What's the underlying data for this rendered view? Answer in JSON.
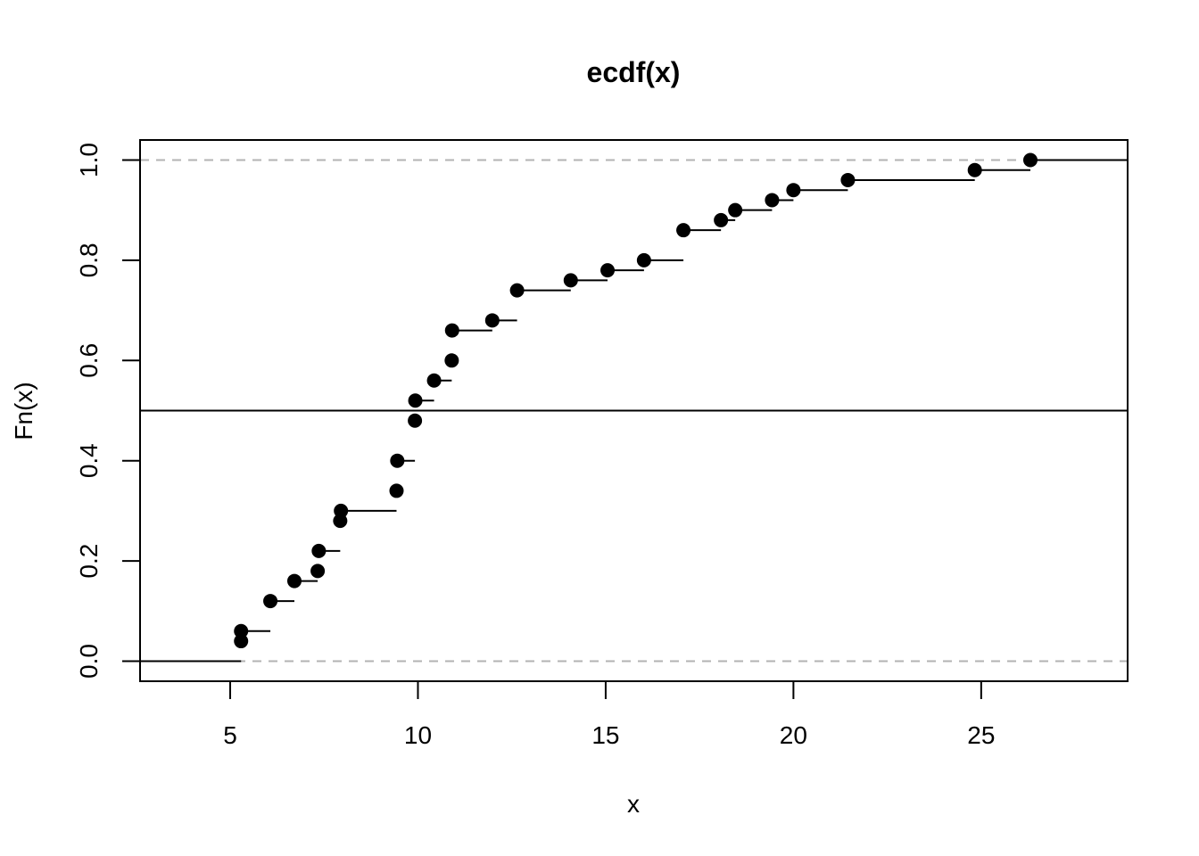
{
  "chart_data": {
    "type": "scatter",
    "title": "ecdf(x)",
    "xlabel": "x",
    "ylabel": "Fn(x)",
    "xlim": [
      2.6,
      28.9
    ],
    "ylim": [
      -0.04,
      1.04
    ],
    "x_ticks": [
      5,
      10,
      15,
      20,
      25
    ],
    "x_tick_labels": [
      "5",
      "10",
      "15",
      "20",
      "25"
    ],
    "y_ticks": [
      0,
      0.2,
      0.4,
      0.6,
      0.8,
      1
    ],
    "y_tick_labels": [
      "0.0",
      "0.2",
      "0.4",
      "0.6",
      "0.8",
      "1.0"
    ],
    "grid": false,
    "reference_lines": [
      {
        "y": 0,
        "style": "dashed",
        "color": "#b3b3b3"
      },
      {
        "y": 1,
        "style": "dashed",
        "color": "#b3b3b3"
      },
      {
        "y": 0.5,
        "style": "solid",
        "color": "#000000"
      }
    ],
    "steps": [
      {
        "x": 5.29,
        "y": 0.04
      },
      {
        "x": 5.29,
        "y": 0.06
      },
      {
        "x": 6.07,
        "y": 0.12
      },
      {
        "x": 6.71,
        "y": 0.16
      },
      {
        "x": 7.33,
        "y": 0.18
      },
      {
        "x": 7.36,
        "y": 0.22
      },
      {
        "x": 7.93,
        "y": 0.28
      },
      {
        "x": 7.95,
        "y": 0.3
      },
      {
        "x": 9.43,
        "y": 0.34
      },
      {
        "x": 9.45,
        "y": 0.4
      },
      {
        "x": 9.92,
        "y": 0.48
      },
      {
        "x": 9.93,
        "y": 0.52
      },
      {
        "x": 10.43,
        "y": 0.56
      },
      {
        "x": 10.9,
        "y": 0.6
      },
      {
        "x": 10.91,
        "y": 0.66
      },
      {
        "x": 11.98,
        "y": 0.68
      },
      {
        "x": 12.64,
        "y": 0.74
      },
      {
        "x": 14.07,
        "y": 0.76
      },
      {
        "x": 15.05,
        "y": 0.78
      },
      {
        "x": 16.02,
        "y": 0.8
      },
      {
        "x": 17.07,
        "y": 0.86
      },
      {
        "x": 18.07,
        "y": 0.88
      },
      {
        "x": 18.45,
        "y": 0.9
      },
      {
        "x": 19.43,
        "y": 0.92
      },
      {
        "x": 20.0,
        "y": 0.94
      },
      {
        "x": 21.45,
        "y": 0.96
      },
      {
        "x": 24.83,
        "y": 0.98
      },
      {
        "x": 26.31,
        "y": 1.0
      }
    ]
  }
}
